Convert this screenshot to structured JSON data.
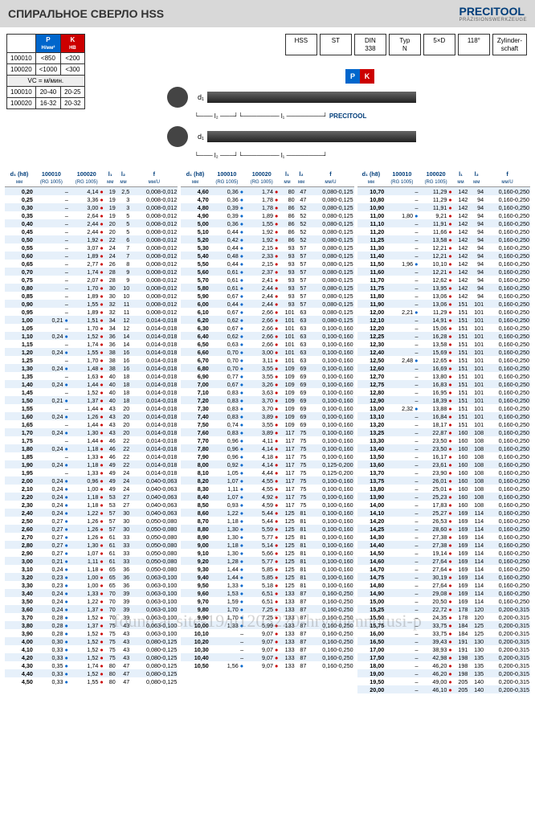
{
  "header": {
    "title": "СПИРАЛЬНОЕ СВЕРЛО HSS",
    "logo": "PRECITOOL",
    "logo_sub": "PRÄZISIONSWERKZEUGE"
  },
  "watermark": "found at site-19/u1203220-hryvnennotusi-p",
  "pk_table": {
    "p_label": "P",
    "k_label": "K",
    "p_unit": "Н/мм²",
    "k_unit": "HB",
    "rows": [
      {
        "id": "100010",
        "p": "<850",
        "k": "<200"
      },
      {
        "id": "100020",
        "p": "<1000",
        "k": "<300"
      }
    ],
    "vc_label": "VC = м/мин.",
    "vc_rows": [
      {
        "id": "100010",
        "a": "20-40",
        "b": "20-25"
      },
      {
        "id": "100020",
        "a": "16-32",
        "b": "20-32"
      }
    ]
  },
  "badges": [
    "HSS",
    "ST",
    "DIN\n338",
    "Typ\nN",
    "5×D",
    "118°",
    "Zylinder-\nschaft"
  ],
  "cols": {
    "d1": "d₁ (h8)",
    "d1u": "мм",
    "c1": "100010",
    "c2": "100020",
    "rg": "(RG 1005)",
    "l1": "l₁",
    "l2": "l₂",
    "lu": "мм",
    "f": "f",
    "fu": "мм/U"
  },
  "block1": [
    [
      "0,20",
      "–",
      "4,14",
      "19",
      "2,5",
      "0,008-0,012"
    ],
    [
      "0,25",
      "–",
      "3,36",
      "19",
      "3",
      "0,008-0,012"
    ],
    [
      "0,30",
      "–",
      "3,00",
      "19",
      "3",
      "0,008-0,012"
    ],
    [
      "0,35",
      "–",
      "2,64",
      "19",
      "5",
      "0,008-0,012"
    ],
    [
      "0,40",
      "–",
      "2,44",
      "20",
      "5",
      "0,008-0,012"
    ],
    [
      "0,45",
      "–",
      "2,44",
      "20",
      "5",
      "0,008-0,012"
    ],
    [
      "0,50",
      "–",
      "1,92",
      "22",
      "6",
      "0,008-0,012"
    ],
    [
      "0,55",
      "–",
      "3,07",
      "24",
      "7",
      "0,008-0,012"
    ],
    [
      "0,60",
      "–",
      "1,89",
      "24",
      "7",
      "0,008-0,012"
    ],
    [
      "0,65",
      "–",
      "2,77",
      "26",
      "8",
      "0,008-0,012"
    ],
    [
      "0,70",
      "–",
      "1,74",
      "28",
      "9",
      "0,008-0,012"
    ],
    [
      "0,75",
      "–",
      "2,07",
      "28",
      "9",
      "0,008-0,012"
    ],
    [
      "0,80",
      "–",
      "1,70",
      "30",
      "10",
      "0,008-0,012"
    ],
    [
      "0,85",
      "–",
      "1,89",
      "30",
      "10",
      "0,008-0,012"
    ],
    [
      "0,90",
      "–",
      "1,55",
      "32",
      "11",
      "0,008-0,012"
    ],
    [
      "0,95",
      "–",
      "1,89",
      "32",
      "11",
      "0,008-0,012"
    ],
    [
      "1,00",
      "0,21",
      "1,51",
      "34",
      "12",
      "0,014-0,018"
    ],
    [
      "1,05",
      "–",
      "1,70",
      "34",
      "12",
      "0,014-0,018"
    ],
    [
      "1,10",
      "0,24",
      "1,52",
      "36",
      "14",
      "0,014-0,018"
    ],
    [
      "1,15",
      "–",
      "1,74",
      "36",
      "14",
      "0,014-0,018"
    ],
    [
      "1,20",
      "0,24",
      "1,55",
      "38",
      "16",
      "0,014-0,018"
    ],
    [
      "1,25",
      "–",
      "1,70",
      "38",
      "16",
      "0,014-0,018"
    ],
    [
      "1,30",
      "0,24",
      "1,48",
      "38",
      "16",
      "0,014-0,018"
    ],
    [
      "1,35",
      "–",
      "1,63",
      "40",
      "18",
      "0,014-0,018"
    ],
    [
      "1,40",
      "0,24",
      "1,44",
      "40",
      "18",
      "0,014-0,018"
    ],
    [
      "1,45",
      "–",
      "1,52",
      "40",
      "18",
      "0,014-0,018"
    ],
    [
      "1,50",
      "0,21",
      "1,37",
      "40",
      "18",
      "0,014-0,018"
    ],
    [
      "1,55",
      "–",
      "1,44",
      "43",
      "20",
      "0,014-0,018"
    ],
    [
      "1,60",
      "0,24",
      "1,26",
      "43",
      "20",
      "0,014-0,018"
    ],
    [
      "1,65",
      "–",
      "1,44",
      "43",
      "20",
      "0,014-0,018"
    ],
    [
      "1,70",
      "0,24",
      "1,30",
      "43",
      "20",
      "0,014-0,018"
    ],
    [
      "1,75",
      "–",
      "1,44",
      "46",
      "22",
      "0,014-0,018"
    ],
    [
      "1,80",
      "0,24",
      "1,18",
      "46",
      "22",
      "0,014-0,018"
    ],
    [
      "1,85",
      "–",
      "1,33",
      "46",
      "22",
      "0,014-0,018"
    ],
    [
      "1,90",
      "0,24",
      "1,18",
      "49",
      "22",
      "0,014-0,018"
    ],
    [
      "1,95",
      "–",
      "1,33",
      "49",
      "24",
      "0,014-0,018"
    ],
    [
      "2,00",
      "0,24",
      "0,96",
      "49",
      "24",
      "0,040-0,063"
    ],
    [
      "2,10",
      "0,24",
      "1,00",
      "49",
      "24",
      "0,040-0,063"
    ],
    [
      "2,20",
      "0,24",
      "1,18",
      "53",
      "27",
      "0,040-0,063"
    ],
    [
      "2,30",
      "0,24",
      "1,18",
      "53",
      "27",
      "0,040-0,063"
    ],
    [
      "2,40",
      "0,24",
      "1,22",
      "57",
      "30",
      "0,040-0,063"
    ],
    [
      "2,50",
      "0,27",
      "1,26",
      "57",
      "30",
      "0,050-0,080"
    ],
    [
      "2,60",
      "0,27",
      "1,26",
      "57",
      "30",
      "0,050-0,080"
    ],
    [
      "2,70",
      "0,27",
      "1,26",
      "61",
      "33",
      "0,050-0,080"
    ],
    [
      "2,80",
      "0,27",
      "1,30",
      "61",
      "33",
      "0,050-0,080"
    ],
    [
      "2,90",
      "0,27",
      "1,07",
      "61",
      "33",
      "0,050-0,080"
    ],
    [
      "3,00",
      "0,21",
      "1,11",
      "61",
      "33",
      "0,050-0,080"
    ],
    [
      "3,10",
      "0,24",
      "1,18",
      "65",
      "36",
      "0,050-0,080"
    ],
    [
      "3,20",
      "0,23",
      "1,00",
      "65",
      "36",
      "0,063-0,100"
    ],
    [
      "3,30",
      "0,23",
      "1,00",
      "65",
      "36",
      "0,063-0,100"
    ],
    [
      "3,40",
      "0,24",
      "1,33",
      "70",
      "39",
      "0,063-0,100"
    ],
    [
      "3,50",
      "0,24",
      "1,22",
      "70",
      "39",
      "0,063-0,100"
    ],
    [
      "3,60",
      "0,24",
      "1,37",
      "70",
      "39",
      "0,063-0,100"
    ],
    [
      "3,70",
      "0,28",
      "1,52",
      "70",
      "39",
      "0,063-0,100"
    ],
    [
      "3,80",
      "0,28",
      "1,37",
      "75",
      "43",
      "0,063-0,100"
    ],
    [
      "3,90",
      "0,28",
      "1,52",
      "75",
      "43",
      "0,063-0,100"
    ],
    [
      "4,00",
      "0,30",
      "1,52",
      "75",
      "43",
      "0,080-0,125"
    ],
    [
      "4,10",
      "0,33",
      "1,52",
      "75",
      "43",
      "0,080-0,125"
    ],
    [
      "4,20",
      "0,33",
      "1,52",
      "75",
      "43",
      "0,080-0,125"
    ],
    [
      "4,30",
      "0,35",
      "1,74",
      "80",
      "47",
      "0,080-0,125"
    ],
    [
      "4,40",
      "0,33",
      "1,52",
      "80",
      "47",
      "0,080-0,125"
    ],
    [
      "4,50",
      "0,33",
      "1,55",
      "80",
      "47",
      "0,080-0,125"
    ]
  ],
  "block2": [
    [
      "4,60",
      "0,36",
      "1,74",
      "80",
      "47",
      "0,080-0,125"
    ],
    [
      "4,70",
      "0,36",
      "1,78",
      "80",
      "47",
      "0,080-0,125"
    ],
    [
      "4,80",
      "0,39",
      "1,78",
      "86",
      "52",
      "0,080-0,125"
    ],
    [
      "4,90",
      "0,39",
      "1,89",
      "86",
      "52",
      "0,080-0,125"
    ],
    [
      "5,00",
      "0,36",
      "1,55",
      "86",
      "52",
      "0,080-0,125"
    ],
    [
      "5,10",
      "0,44",
      "1,92",
      "86",
      "52",
      "0,080-0,125"
    ],
    [
      "5,20",
      "0,42",
      "1,92",
      "86",
      "52",
      "0,080-0,125"
    ],
    [
      "5,30",
      "0,44",
      "2,15",
      "93",
      "57",
      "0,080-0,125"
    ],
    [
      "5,40",
      "0,48",
      "2,33",
      "93",
      "57",
      "0,080-0,125"
    ],
    [
      "5,50",
      "0,44",
      "2,15",
      "93",
      "57",
      "0,080-0,125"
    ],
    [
      "5,60",
      "0,61",
      "2,37",
      "93",
      "57",
      "0,080-0,125"
    ],
    [
      "5,70",
      "0,61",
      "2,41",
      "93",
      "57",
      "0,080-0,125"
    ],
    [
      "5,80",
      "0,61",
      "2,44",
      "93",
      "57",
      "0,080-0,125"
    ],
    [
      "5,90",
      "0,67",
      "2,44",
      "93",
      "57",
      "0,080-0,125"
    ],
    [
      "6,00",
      "0,44",
      "2,44",
      "93",
      "57",
      "0,080-0,125"
    ],
    [
      "6,10",
      "0,67",
      "2,66",
      "101",
      "63",
      "0,080-0,125"
    ],
    [
      "6,20",
      "0,62",
      "2,66",
      "101",
      "63",
      "0,080-0,125"
    ],
    [
      "6,30",
      "0,67",
      "2,66",
      "101",
      "63",
      "0,100-0,160"
    ],
    [
      "6,40",
      "0,62",
      "2,66",
      "101",
      "63",
      "0,100-0,160"
    ],
    [
      "6,50",
      "0,63",
      "2,66",
      "101",
      "63",
      "0,100-0,160"
    ],
    [
      "6,60",
      "0,70",
      "3,00",
      "101",
      "63",
      "0,100-0,160"
    ],
    [
      "6,70",
      "0,70",
      "3,11",
      "101",
      "63",
      "0,100-0,160"
    ],
    [
      "6,80",
      "0,70",
      "3,55",
      "109",
      "69",
      "0,100-0,160"
    ],
    [
      "6,90",
      "0,77",
      "3,55",
      "109",
      "69",
      "0,100-0,160"
    ],
    [
      "7,00",
      "0,67",
      "3,26",
      "109",
      "69",
      "0,100-0,160"
    ],
    [
      "7,10",
      "0,83",
      "3,63",
      "109",
      "69",
      "0,100-0,160"
    ],
    [
      "7,20",
      "0,83",
      "3,70",
      "109",
      "69",
      "0,100-0,160"
    ],
    [
      "7,30",
      "0,83",
      "3,70",
      "109",
      "69",
      "0,100-0,160"
    ],
    [
      "7,40",
      "0,83",
      "3,89",
      "109",
      "69",
      "0,100-0,160"
    ],
    [
      "7,50",
      "0,74",
      "3,55",
      "109",
      "69",
      "0,100-0,160"
    ],
    [
      "7,60",
      "0,83",
      "3,89",
      "117",
      "75",
      "0,100-0,160"
    ],
    [
      "7,70",
      "0,96",
      "4,11",
      "117",
      "75",
      "0,100-0,160"
    ],
    [
      "7,80",
      "0,96",
      "4,14",
      "117",
      "75",
      "0,100-0,160"
    ],
    [
      "7,90",
      "0,96",
      "4,18",
      "117",
      "75",
      "0,100-0,160"
    ],
    [
      "8,00",
      "0,92",
      "4,14",
      "117",
      "75",
      "0,125-0,200"
    ],
    [
      "8,10",
      "1,05",
      "4,44",
      "117",
      "75",
      "0,125-0,200"
    ],
    [
      "8,20",
      "1,07",
      "4,55",
      "117",
      "75",
      "0,100-0,160"
    ],
    [
      "8,30",
      "1,11",
      "4,55",
      "117",
      "75",
      "0,100-0,160"
    ],
    [
      "8,40",
      "1,07",
      "4,92",
      "117",
      "75",
      "0,100-0,160"
    ],
    [
      "8,50",
      "0,93",
      "4,59",
      "117",
      "75",
      "0,100-0,160"
    ],
    [
      "8,60",
      "1,22",
      "5,44",
      "125",
      "81",
      "0,100-0,160"
    ],
    [
      "8,70",
      "1,18",
      "5,44",
      "125",
      "81",
      "0,100-0,160"
    ],
    [
      "8,80",
      "1,30",
      "5,59",
      "125",
      "81",
      "0,100-0,160"
    ],
    [
      "8,90",
      "1,30",
      "5,77",
      "125",
      "81",
      "0,100-0,160"
    ],
    [
      "9,00",
      "1,18",
      "5,14",
      "125",
      "81",
      "0,100-0,160"
    ],
    [
      "9,10",
      "1,30",
      "5,66",
      "125",
      "81",
      "0,100-0,160"
    ],
    [
      "9,20",
      "1,28",
      "5,77",
      "125",
      "81",
      "0,100-0,160"
    ],
    [
      "9,30",
      "1,44",
      "5,85",
      "125",
      "81",
      "0,100-0,160"
    ],
    [
      "9,40",
      "1,44",
      "5,85",
      "125",
      "81",
      "0,100-0,160"
    ],
    [
      "9,50",
      "1,33",
      "5,18",
      "125",
      "81",
      "0,100-0,160"
    ],
    [
      "9,60",
      "1,53",
      "6,51",
      "133",
      "87",
      "0,160-0,250"
    ],
    [
      "9,70",
      "1,59",
      "6,51",
      "133",
      "87",
      "0,160-0,250"
    ],
    [
      "9,80",
      "1,70",
      "7,25",
      "133",
      "87",
      "0,160-0,250"
    ],
    [
      "9,90",
      "1,70",
      "7,25",
      "133",
      "87",
      "0,160-0,250"
    ],
    [
      "10,00",
      "1,33",
      "5,99",
      "133",
      "87",
      "0,160-0,250"
    ],
    [
      "10,10",
      "–",
      "9,07",
      "133",
      "87",
      "0,160-0,250"
    ],
    [
      "10,20",
      "–",
      "9,07",
      "133",
      "87",
      "0,160-0,250"
    ],
    [
      "10,30",
      "–",
      "9,07",
      "133",
      "87",
      "0,160-0,250"
    ],
    [
      "10,40",
      "–",
      "9,07",
      "133",
      "87",
      "0,160-0,250"
    ],
    [
      "10,50",
      "1,56",
      "9,07",
      "133",
      "87",
      "0,160-0,250"
    ]
  ],
  "block3": [
    [
      "10,70",
      "–",
      "11,29",
      "142",
      "94",
      "0,160-0,250"
    ],
    [
      "10,80",
      "–",
      "11,29",
      "142",
      "94",
      "0,160-0,250"
    ],
    [
      "10,90",
      "–",
      "11,91",
      "142",
      "94",
      "0,160-0,250"
    ],
    [
      "11,00",
      "1,80",
      "9,21",
      "142",
      "94",
      "0,160-0,250"
    ],
    [
      "11,10",
      "–",
      "11,91",
      "142",
      "94",
      "0,160-0,250"
    ],
    [
      "11,20",
      "–",
      "11,66",
      "142",
      "94",
      "0,160-0,250"
    ],
    [
      "11,25",
      "–",
      "13,58",
      "142",
      "94",
      "0,160-0,250"
    ],
    [
      "11,30",
      "–",
      "12,21",
      "142",
      "94",
      "0,160-0,250"
    ],
    [
      "11,40",
      "–",
      "12,21",
      "142",
      "94",
      "0,160-0,250"
    ],
    [
      "11,50",
      "1,96",
      "10,10",
      "142",
      "94",
      "0,160-0,250"
    ],
    [
      "11,60",
      "–",
      "12,21",
      "142",
      "94",
      "0,160-0,250"
    ],
    [
      "11,70",
      "–",
      "12,62",
      "142",
      "94",
      "0,160-0,250"
    ],
    [
      "11,75",
      "–",
      "13,95",
      "142",
      "94",
      "0,160-0,250"
    ],
    [
      "11,80",
      "–",
      "13,06",
      "142",
      "94",
      "0,160-0,250"
    ],
    [
      "11,90",
      "–",
      "13,06",
      "151",
      "101",
      "0,160-0,250"
    ],
    [
      "12,00",
      "2,21",
      "11,29",
      "151",
      "101",
      "0,160-0,250"
    ],
    [
      "12,10",
      "–",
      "14,91",
      "151",
      "101",
      "0,160-0,250"
    ],
    [
      "12,20",
      "–",
      "15,06",
      "151",
      "101",
      "0,160-0,250"
    ],
    [
      "12,25",
      "–",
      "16,28",
      "151",
      "101",
      "0,160-0,250"
    ],
    [
      "12,30",
      "–",
      "13,58",
      "151",
      "101",
      "0,160-0,250"
    ],
    [
      "12,40",
      "–",
      "15,69",
      "151",
      "101",
      "0,160-0,250"
    ],
    [
      "12,50",
      "2,48",
      "12,65",
      "151",
      "101",
      "0,160-0,250"
    ],
    [
      "12,60",
      "–",
      "16,69",
      "151",
      "101",
      "0,160-0,250"
    ],
    [
      "12,70",
      "–",
      "13,80",
      "151",
      "101",
      "0,160-0,250"
    ],
    [
      "12,75",
      "–",
      "16,83",
      "151",
      "101",
      "0,160-0,250"
    ],
    [
      "12,80",
      "–",
      "16,95",
      "151",
      "101",
      "0,160-0,250"
    ],
    [
      "12,90",
      "–",
      "18,39",
      "151",
      "101",
      "0,160-0,250"
    ],
    [
      "13,00",
      "2,32",
      "13,88",
      "151",
      "101",
      "0,160-0,250"
    ],
    [
      "13,10",
      "–",
      "16,84",
      "151",
      "101",
      "0,160-0,250"
    ],
    [
      "13,20",
      "–",
      "18,17",
      "151",
      "101",
      "0,160-0,250"
    ],
    [
      "13,25",
      "–",
      "22,87",
      "160",
      "108",
      "0,160-0,250"
    ],
    [
      "13,30",
      "–",
      "23,50",
      "160",
      "108",
      "0,160-0,250"
    ],
    [
      "13,40",
      "–",
      "23,50",
      "160",
      "108",
      "0,160-0,250"
    ],
    [
      "13,50",
      "–",
      "16,17",
      "160",
      "108",
      "0,160-0,250"
    ],
    [
      "13,60",
      "–",
      "23,61",
      "160",
      "108",
      "0,160-0,250"
    ],
    [
      "13,70",
      "–",
      "23,90",
      "160",
      "108",
      "0,160-0,250"
    ],
    [
      "13,75",
      "–",
      "26,01",
      "160",
      "108",
      "0,160-0,250"
    ],
    [
      "13,80",
      "–",
      "25,01",
      "160",
      "108",
      "0,160-0,250"
    ],
    [
      "13,90",
      "–",
      "25,23",
      "160",
      "108",
      "0,160-0,250"
    ],
    [
      "14,00",
      "–",
      "17,83",
      "160",
      "108",
      "0,160-0,250"
    ],
    [
      "14,10",
      "–",
      "25,27",
      "169",
      "114",
      "0,160-0,250"
    ],
    [
      "14,20",
      "–",
      "26,53",
      "169",
      "114",
      "0,160-0,250"
    ],
    [
      "14,25",
      "–",
      "28,60",
      "169",
      "114",
      "0,160-0,250"
    ],
    [
      "14,30",
      "–",
      "27,38",
      "169",
      "114",
      "0,160-0,250"
    ],
    [
      "14,40",
      "–",
      "27,38",
      "169",
      "114",
      "0,160-0,250"
    ],
    [
      "14,50",
      "–",
      "19,14",
      "169",
      "114",
      "0,160-0,250"
    ],
    [
      "14,60",
      "–",
      "27,64",
      "169",
      "114",
      "0,160-0,250"
    ],
    [
      "14,70",
      "–",
      "27,64",
      "169",
      "114",
      "0,160-0,250"
    ],
    [
      "14,75",
      "–",
      "30,19",
      "169",
      "114",
      "0,160-0,250"
    ],
    [
      "14,80",
      "–",
      "27,64",
      "169",
      "114",
      "0,160-0,250"
    ],
    [
      "14,90",
      "–",
      "29,08",
      "169",
      "114",
      "0,160-0,250"
    ],
    [
      "15,00",
      "–",
      "20,50",
      "169",
      "114",
      "0,160-0,250"
    ],
    [
      "15,25",
      "–",
      "22,72",
      "178",
      "120",
      "0,200-0,315"
    ],
    [
      "15,50",
      "–",
      "24,35",
      "178",
      "120",
      "0,200-0,315"
    ],
    [
      "15,75",
      "–",
      "33,75",
      "184",
      "125",
      "0,200-0,315"
    ],
    [
      "16,00",
      "–",
      "33,75",
      "184",
      "125",
      "0,200-0,315"
    ],
    [
      "16,50",
      "–",
      "39,43",
      "191",
      "130",
      "0,200-0,315"
    ],
    [
      "17,00",
      "–",
      "38,93",
      "191",
      "130",
      "0,200-0,315"
    ],
    [
      "17,50",
      "–",
      "42,98",
      "198",
      "135",
      "0,200-0,315"
    ],
    [
      "18,00",
      "–",
      "46,20",
      "198",
      "135",
      "0,200-0,315"
    ],
    [
      "19,00",
      "–",
      "46,20",
      "198",
      "135",
      "0,200-0,315"
    ],
    [
      "19,50",
      "–",
      "49,00",
      "205",
      "140",
      "0,200-0,315"
    ],
    [
      "20,00",
      "–",
      "46,10",
      "205",
      "140",
      "0,200-0,315"
    ]
  ]
}
